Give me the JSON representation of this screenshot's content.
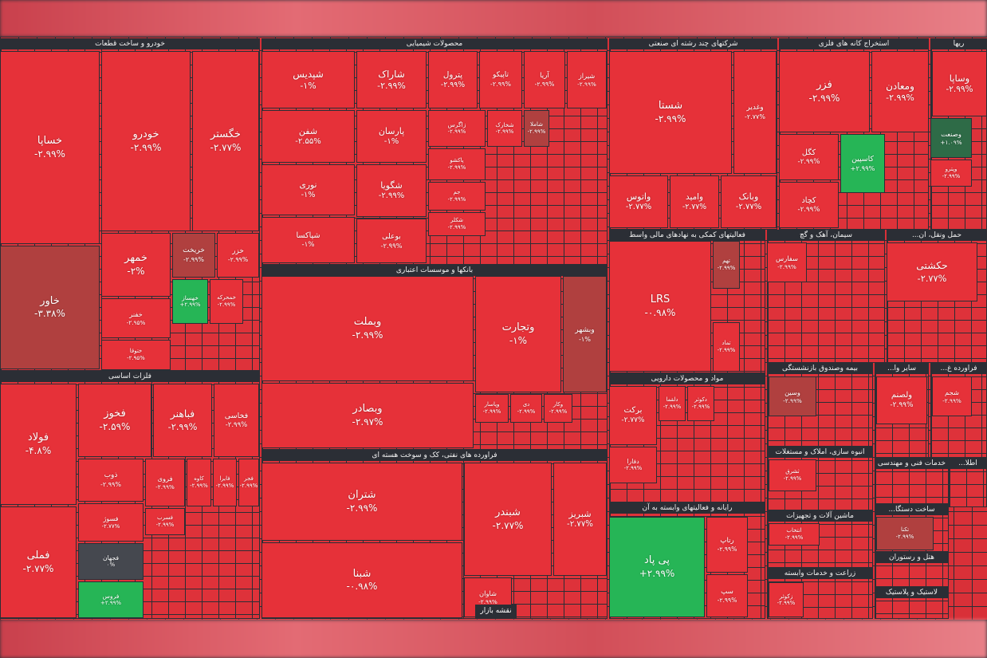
{
  "sectors": [
    {
      "title": "خودرو و ساخت قطعات",
      "tiles": [
        {
          "label": "خساپا",
          "change": "-۲.۹۹%",
          "color": "#e63139"
        },
        {
          "label": "خودرو",
          "change": "-۲.۹۹%",
          "color": "#e63139"
        },
        {
          "label": "خگستر",
          "change": "-۲.۷۷%",
          "color": "#e63139"
        },
        {
          "label": "خاور",
          "change": "-۳.۳۸%",
          "color": "#b0403f"
        },
        {
          "label": "خمهر",
          "change": "-۲%",
          "color": "#e63139"
        },
        {
          "label": "خریخت",
          "change": "-۲.۹۹%",
          "color": "#b0403f"
        },
        {
          "label": "خزر",
          "change": "-۲.۹۹%",
          "color": "#e63139"
        },
        {
          "label": "خفنر",
          "change": "-۲.۹۵%",
          "color": "#e63139"
        },
        {
          "label": "ختوقا",
          "change": "-۲.۹۵%",
          "color": "#e63139"
        },
        {
          "label": "خهساز",
          "change": "+۲.۹۹%",
          "color": "#26b556"
        },
        {
          "label": "خمحرکه",
          "change": "-۲.۹۹%",
          "color": "#e63139"
        }
      ]
    },
    {
      "title": "فلزات اساسی",
      "tiles": [
        {
          "label": "فولاد",
          "change": "-۴.۸%",
          "color": "#e63139"
        },
        {
          "label": "فملی",
          "change": "-۲.۷۷%",
          "color": "#e63139"
        },
        {
          "label": "فخوز",
          "change": "-۲.۵۹%",
          "color": "#e63139"
        },
        {
          "label": "فباهنر",
          "change": "-۲.۹۹%",
          "color": "#e63139"
        },
        {
          "label": "فخاسی",
          "change": "-۲.۹۹%",
          "color": "#e63139"
        },
        {
          "label": "ذوب",
          "change": "-۲.۹۹%",
          "color": "#e63139"
        },
        {
          "label": "فروی",
          "change": "-۲.۹۹%",
          "color": "#e63139"
        },
        {
          "label": "کاوه",
          "change": "-۲.۹۹%",
          "color": "#e63139"
        },
        {
          "label": "فایرا",
          "change": "-۲.۹۹%",
          "color": "#e63139"
        },
        {
          "label": "فجر",
          "change": "-۲.۹۹%",
          "color": "#e63139"
        },
        {
          "label": "فسوژ",
          "change": "-۲.۷۷%",
          "color": "#e63139"
        },
        {
          "label": "فجهان",
          "change": "۰%",
          "color": "#45484f"
        },
        {
          "label": "فروس",
          "change": "+۲.۹۹%",
          "color": "#26b556"
        },
        {
          "label": "فسرب",
          "change": "-۲.۹۹%",
          "color": "#e63139"
        }
      ]
    },
    {
      "title": "محصولات شیمیایی",
      "tiles": [
        {
          "label": "شپدیس",
          "change": "-۱%",
          "color": "#e63139"
        },
        {
          "label": "شفن",
          "change": "-۲.۵۵%",
          "color": "#e63139"
        },
        {
          "label": "نوری",
          "change": "-۱%",
          "color": "#e63139"
        },
        {
          "label": "شپاکسا",
          "change": "-۱%",
          "color": "#e63139"
        },
        {
          "label": "شاراک",
          "change": "-۲.۹۹%",
          "color": "#e63139"
        },
        {
          "label": "پارسان",
          "change": "-۱%",
          "color": "#e63139"
        },
        {
          "label": "شگویا",
          "change": "-۲.۹۹%",
          "color": "#e63139"
        },
        {
          "label": "بوعلی",
          "change": "-۲.۹۹%",
          "color": "#e63139"
        },
        {
          "label": "پترول",
          "change": "-۲.۹۹%",
          "color": "#e63139"
        },
        {
          "label": "تاپیکو",
          "change": "-۲.۹۹%",
          "color": "#e63139"
        },
        {
          "label": "آریا",
          "change": "-۲.۹۹%",
          "color": "#e63139"
        },
        {
          "label": "شیراز",
          "change": "-۲.۹۹%",
          "color": "#e63139"
        },
        {
          "label": "زاگرس",
          "change": "-۲.۹۹%",
          "color": "#e63139"
        },
        {
          "label": "شخارک",
          "change": "-۲.۹۹%",
          "color": "#e63139"
        },
        {
          "label": "شاملا",
          "change": "-۲.۹۹%",
          "color": "#b0403f"
        },
        {
          "label": "پاکشو",
          "change": "-۲.۹۹%",
          "color": "#e63139"
        },
        {
          "label": "جم",
          "change": "-۲.۹۹%",
          "color": "#e63139"
        },
        {
          "label": "شکلر",
          "change": "-۲.۹۹%",
          "color": "#e63139"
        }
      ]
    },
    {
      "title": "بانکها و موسسات اعتباری",
      "tiles": [
        {
          "label": "وبملت",
          "change": "-۲.۹۹%",
          "color": "#e63139"
        },
        {
          "label": "وبصادر",
          "change": "-۲.۹۷%",
          "color": "#e63139"
        },
        {
          "label": "وتجارت",
          "change": "-۱%",
          "color": "#e63139"
        },
        {
          "label": "وبشهر",
          "change": "-۱%",
          "color": "#b0403f"
        },
        {
          "label": "وپاسار",
          "change": "-۲.۹۹%",
          "color": "#e63139"
        },
        {
          "label": "دی",
          "change": "-۲.۹۹%",
          "color": "#e63139"
        },
        {
          "label": "وکار",
          "change": "-۲.۹۹%",
          "color": "#e63139"
        }
      ]
    },
    {
      "title": "فراورده های نفتی، کک و سوخت هسته ای",
      "tiles": [
        {
          "label": "شتران",
          "change": "-۲.۹۹%",
          "color": "#e63139"
        },
        {
          "label": "شبنا",
          "change": "-۰.۹۸%",
          "color": "#e63139"
        },
        {
          "label": "شبندر",
          "change": "-۲.۷۷%",
          "color": "#e63139"
        },
        {
          "label": "شبریز",
          "change": "-۲.۷۷%",
          "color": "#e63139"
        },
        {
          "label": "شاوان",
          "change": "-۲.۹۹%",
          "color": "#e63139"
        }
      ]
    },
    {
      "title": "شرکتهای چند رشته ای صنعتی",
      "tiles": [
        {
          "label": "شستا",
          "change": "-۲.۹۹%",
          "color": "#e63139"
        },
        {
          "label": "وغدیر",
          "change": "-۲.۷۷%",
          "color": "#e63139"
        },
        {
          "label": "واتوس",
          "change": "-۲.۷۷%",
          "color": "#e63139"
        },
        {
          "label": "وامید",
          "change": "-۲.۷۷%",
          "color": "#e63139"
        },
        {
          "label": "وبانک",
          "change": "-۲.۷۷%",
          "color": "#e63139"
        }
      ]
    },
    {
      "title": "استخراج کانه های فلزی",
      "tiles": [
        {
          "label": "فزر",
          "change": "-۲.۹۹%",
          "color": "#e63139"
        },
        {
          "label": "ومعادن",
          "change": "-۲.۹۹%",
          "color": "#e63139"
        },
        {
          "label": "کگل",
          "change": "-۲.۹۹%",
          "color": "#e63139"
        },
        {
          "label": "کاسپین",
          "change": "+۲.۹۹%",
          "color": "#26b556"
        },
        {
          "label": "کچاد",
          "change": "-۲.۹۹%",
          "color": "#e63139"
        }
      ]
    },
    {
      "title": "ریها",
      "tiles": [
        {
          "label": "وساپا",
          "change": "-۲.۹۹%",
          "color": "#e63139"
        },
        {
          "label": "وصنعت",
          "change": "+۱.۰۹%",
          "color": "#2e6b47"
        },
        {
          "label": "وپترو",
          "change": "-۲.۹۹%",
          "color": "#e63139"
        }
      ]
    },
    {
      "title": "فعالیتهای کمکی به نهادهای مالی واسط",
      "tiles": [
        {
          "label": "LRS",
          "change": "-۰.۹۸%",
          "color": "#e63139"
        },
        {
          "label": "تهم",
          "change": "-۲.۹۹%",
          "color": "#b0403f"
        },
        {
          "label": "تماد",
          "change": "-۲.۹۹%",
          "color": "#e63139"
        }
      ]
    },
    {
      "title": "سیمان، آهک و گچ",
      "tiles": [
        {
          "label": "سفارس",
          "change": "-۲.۹۹%",
          "color": "#e63139"
        }
      ]
    },
    {
      "title": "حمل ونقل، ان...",
      "tiles": [
        {
          "label": "حکشتی",
          "change": "-۲.۷۷%",
          "color": "#e63139"
        }
      ]
    },
    {
      "title": "مواد و محصولات دارویی",
      "tiles": [
        {
          "label": "برکت",
          "change": "-۲.۷۷%",
          "color": "#e63139"
        },
        {
          "label": "دفارا",
          "change": "-۲.۹۹%",
          "color": "#e63139"
        },
        {
          "label": "دلقما",
          "change": "-۲.۹۹%",
          "color": "#e63139"
        },
        {
          "label": "دکوثر",
          "change": "-۲.۹۹%",
          "color": "#e63139"
        }
      ]
    },
    {
      "title": "رایانه و فعالیتهای وابسته به آن",
      "tiles": [
        {
          "label": "پی پاد",
          "change": "+۲.۹۹%",
          "color": "#26b556"
        },
        {
          "label": "رتاپ",
          "change": "-۲.۹۹%",
          "color": "#e63139"
        },
        {
          "label": "سپ",
          "change": "-۲.۹۹%",
          "color": "#e63139"
        }
      ]
    },
    {
      "title": "بیمه وصندوق بازنشستگی",
      "tiles": [
        {
          "label": "وسین",
          "change": "-۲.۹۹%",
          "color": "#b0403f"
        }
      ]
    },
    {
      "title": "سایر وا...",
      "tiles": [
        {
          "label": "ولصنم",
          "change": "-۲.۹۹%",
          "color": "#e63139"
        }
      ]
    },
    {
      "title": "فراورده غ...",
      "tiles": [
        {
          "label": "شجم",
          "change": "-۲.۹۹%",
          "color": "#e63139"
        }
      ]
    },
    {
      "title": "انبوه سازی، املاک و مستغلات",
      "tiles": [
        {
          "label": "ثشرق",
          "change": "-۲.۹۹%",
          "color": "#e63139"
        }
      ]
    },
    {
      "title": "خدمات فنی و مهندسی",
      "tiles": []
    },
    {
      "title": "اطلا...",
      "tiles": []
    },
    {
      "title": "ماشین آلات و تجهیزات",
      "tiles": [
        {
          "label": "انتخاب",
          "change": "-۲.۹۹%",
          "color": "#e63139"
        }
      ]
    },
    {
      "title": "ساخت دستگا...",
      "tiles": [
        {
          "label": "تکنا",
          "change": "-۲.۹۹%",
          "color": "#b0403f"
        }
      ]
    },
    {
      "title": "زراعت و خدمات وابسته",
      "tiles": [
        {
          "label": "زکوثر",
          "change": "-۲.۹۹%",
          "color": "#e63139"
        }
      ]
    },
    {
      "title": "هتل و رستوران",
      "tiles": []
    },
    {
      "title": "لاستیک و پلاستیک",
      "tiles": []
    }
  ],
  "map_button": "نقشه بازار"
}
